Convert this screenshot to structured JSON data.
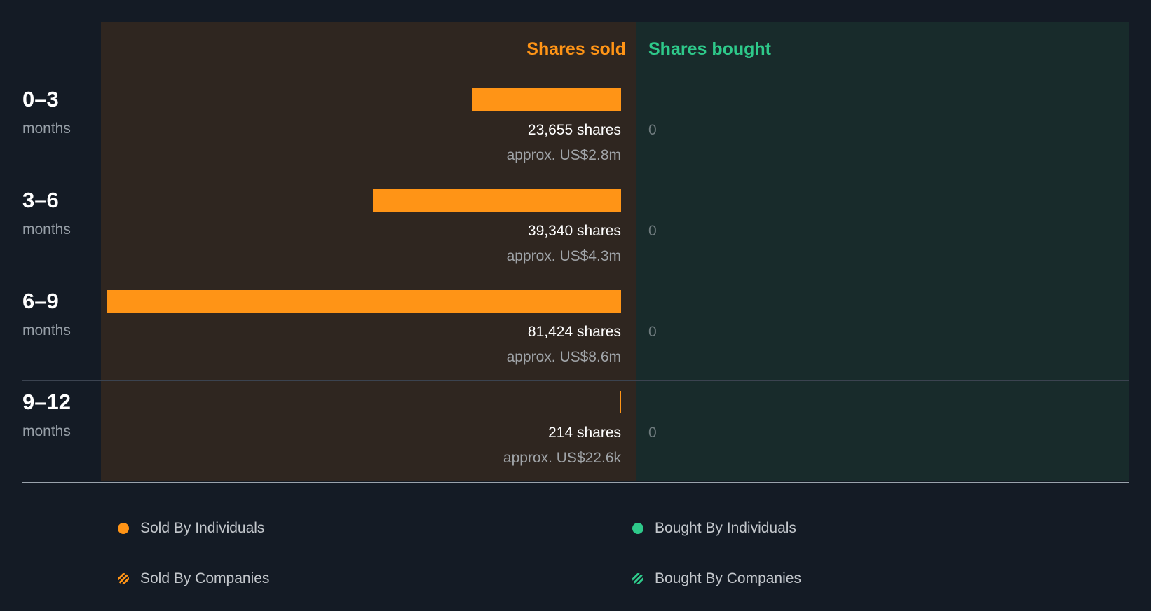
{
  "chart_data": {
    "type": "bar",
    "orientation": "horizontal-diverging",
    "headers": {
      "sold": "Shares sold",
      "bought": "Shares bought"
    },
    "categories": [
      {
        "period": "0–3",
        "unit": "months"
      },
      {
        "period": "3–6",
        "unit": "months"
      },
      {
        "period": "6–9",
        "unit": "months"
      },
      {
        "period": "9–12",
        "unit": "months"
      }
    ],
    "series": [
      {
        "name": "Sold By Individuals",
        "values": [
          23655,
          39340,
          81424,
          214
        ],
        "labels": [
          "23,655 shares",
          "39,340 shares",
          "81,424 shares",
          "214 shares"
        ],
        "approx": [
          "approx. US$2.8m",
          "approx. US$4.3m",
          "approx. US$8.6m",
          "approx. US$22.6k"
        ]
      },
      {
        "name": "Bought By Individuals",
        "values": [
          0,
          0,
          0,
          0
        ],
        "labels": [
          "0",
          "0",
          "0",
          "0"
        ]
      }
    ],
    "max_value": 81424,
    "legend": [
      {
        "label": "Sold By Individuals",
        "color": "#ff9416",
        "style": "solid"
      },
      {
        "label": "Bought By Individuals",
        "color": "#2ec98a",
        "style": "solid"
      },
      {
        "label": "Sold By Companies",
        "color": "#ff9416",
        "style": "hatched"
      },
      {
        "label": "Bought By Companies",
        "color": "#2ec98a",
        "style": "hatched"
      }
    ]
  },
  "colors": {
    "sold": "#ff9416",
    "bought": "#2ec98a"
  }
}
